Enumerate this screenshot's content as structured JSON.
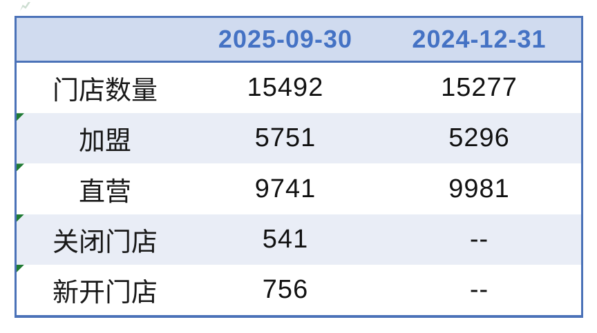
{
  "page": {
    "background_color": "#ffffff",
    "accent_blue": "#4472c4",
    "border_blue": "#4b72b8",
    "header_bg": "#d0dbef",
    "alt_row_bg": "#e9edf6",
    "flag_green": "#1f7a33"
  },
  "table": {
    "columns": [
      "",
      "2025-09-30",
      "2024-12-31"
    ],
    "rows": [
      {
        "label": "门店数量",
        "values": [
          "15492",
          "15277"
        ],
        "flag": false
      },
      {
        "label": "加盟",
        "values": [
          "5751",
          "5296"
        ],
        "flag": true
      },
      {
        "label": "直营",
        "values": [
          "9741",
          "9981"
        ],
        "flag": true
      },
      {
        "label": "关闭门店",
        "values": [
          "541",
          "--"
        ],
        "flag": true
      },
      {
        "label": "新开门店",
        "values": [
          "756",
          "--"
        ],
        "flag": true
      }
    ]
  }
}
